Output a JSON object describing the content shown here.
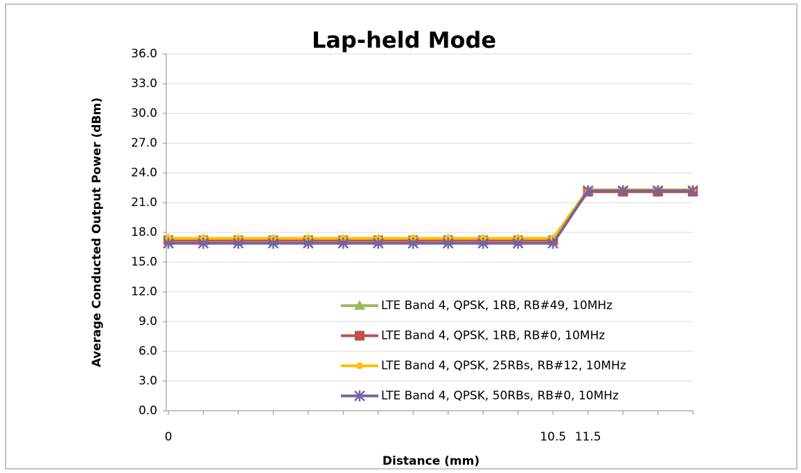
{
  "chart_data": {
    "type": "line",
    "title": "Lap-held Mode",
    "x_label": "Distance (mm)",
    "y_label": "Average Conducted Output  Power (dBm)",
    "categories": [
      "0",
      null,
      null,
      null,
      null,
      null,
      null,
      null,
      null,
      null,
      null,
      "10.5",
      "11.5",
      null,
      null,
      null
    ],
    "series": [
      {
        "name": "LTE Band 4, QPSK, 1RB, RB#49, 10MHz",
        "color": "#9bbb59",
        "marker": "triangle",
        "values": [
          17.3,
          17.3,
          17.3,
          17.3,
          17.3,
          17.3,
          17.3,
          17.3,
          17.3,
          17.3,
          17.3,
          17.3,
          22.2,
          22.2,
          22.2,
          22.2
        ]
      },
      {
        "name": "LTE Band 4, QPSK, 1RB, RB#0, 10MHz",
        "color": "#c0504d",
        "marker": "square",
        "values": [
          17.2,
          17.2,
          17.2,
          17.2,
          17.2,
          17.2,
          17.2,
          17.2,
          17.2,
          17.2,
          17.2,
          17.2,
          22.1,
          22.1,
          22.1,
          22.1
        ]
      },
      {
        "name": "LTE Band 4, QPSK, 25RBs, RB#12, 10MHz",
        "color": "#ffc000",
        "marker": "circle",
        "values": [
          17.4,
          17.4,
          17.4,
          17.4,
          17.4,
          17.4,
          17.4,
          17.4,
          17.4,
          17.4,
          17.4,
          17.4,
          22.3,
          22.3,
          22.3,
          22.3
        ]
      },
      {
        "name": "LTE Band 4, QPSK, 50RBs, RB#0, 10MHz",
        "color": "#7464a0",
        "marker": "x",
        "values": [
          16.9,
          16.9,
          16.9,
          16.9,
          16.9,
          16.9,
          16.9,
          16.9,
          16.9,
          16.9,
          16.9,
          16.9,
          22.2,
          22.2,
          22.2,
          22.2
        ]
      }
    ],
    "ylim": [
      0,
      36
    ],
    "yticks": [
      {
        "value": 0,
        "label": "0.0"
      },
      {
        "value": 3,
        "label": "3.0"
      },
      {
        "value": 6,
        "label": "6.0"
      },
      {
        "value": 9,
        "label": "9.0"
      },
      {
        "value": 12,
        "label": "12.0"
      },
      {
        "value": 15,
        "label": "15.0"
      },
      {
        "value": 18,
        "label": "18.0"
      },
      {
        "value": 21,
        "label": "21.0"
      },
      {
        "value": 24,
        "label": "24.0"
      },
      {
        "value": 27,
        "label": "27.0"
      },
      {
        "value": 30,
        "label": "30.0"
      },
      {
        "value": 33,
        "label": "33.0"
      },
      {
        "value": 36,
        "label": "36.0"
      }
    ],
    "grid": true,
    "legend": "lower right"
  }
}
